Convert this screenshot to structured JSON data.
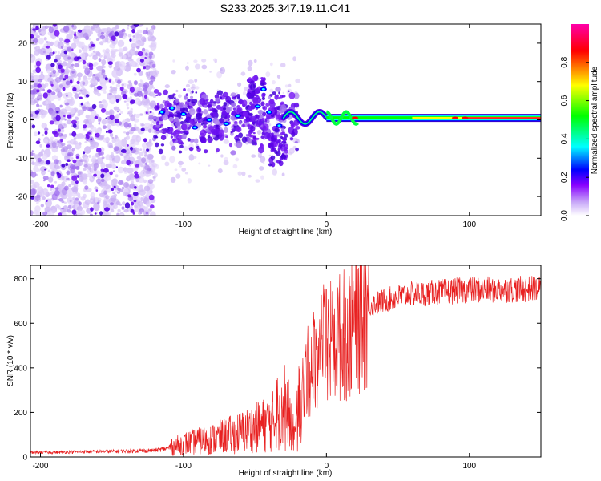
{
  "title": "S233.2025.347.19.11.C41",
  "chart_data": [
    {
      "type": "heatmap",
      "title": "S233.2025.347.19.11.C41",
      "xlabel": "Height of straight line (km)",
      "ylabel": "Frequency (Hz)",
      "xlim": [
        -207,
        150
      ],
      "ylim": [
        -25,
        25
      ],
      "xticks": [
        -200,
        -100,
        0,
        100
      ],
      "yticks": [
        -20,
        -10,
        0,
        10,
        20
      ],
      "colorbar": {
        "label": "Normalized spectral amplitude",
        "range": [
          0,
          1
        ],
        "ticks": [
          0.0,
          0.2,
          0.4,
          0.6,
          0.8
        ],
        "colormap": [
          "#ffffff",
          "#8800ff",
          "#0000ff",
          "#00ffff",
          "#00ff00",
          "#ffff00",
          "#ff0000",
          "#ff00aa"
        ]
      },
      "features": {
        "band_center_hz": 0.5,
        "band_start_km": -20,
        "band_end_km": 150,
        "scatter_region_km": [
          -207,
          -20
        ],
        "band_peaks_km": [
          20,
          90,
          97
        ]
      }
    },
    {
      "type": "line",
      "title": "",
      "xlabel": "Height of straight line (km)",
      "ylabel": "SNR (10 * v/v)",
      "xlim": [
        -207,
        150
      ],
      "ylim": [
        0,
        860
      ],
      "xticks": [
        -200,
        -100,
        0,
        100
      ],
      "yticks": [
        0,
        200,
        400,
        600,
        800
      ],
      "color": "#e82020",
      "series": [
        {
          "name": "SNR",
          "envelope_x": [
            -207,
            -150,
            -120,
            -110,
            -100,
            -80,
            -60,
            -50,
            -40,
            -35,
            -30,
            -25,
            -22,
            -18,
            -15,
            -10,
            -5,
            0,
            5,
            10,
            15,
            20,
            25,
            30,
            40,
            50,
            60,
            80,
            100,
            120,
            150
          ],
          "envelope_y": [
            20,
            25,
            30,
            40,
            60,
            80,
            110,
            130,
            150,
            170,
            180,
            140,
            90,
            200,
            350,
            420,
            500,
            500,
            520,
            540,
            560,
            600,
            640,
            680,
            700,
            720,
            730,
            740,
            750,
            750,
            755
          ]
        }
      ]
    }
  ]
}
